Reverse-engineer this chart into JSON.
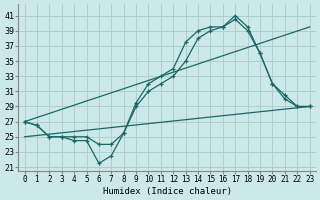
{
  "title": "",
  "xlabel": "Humidex (Indice chaleur)",
  "ylabel": "",
  "background_color": "#cce8e8",
  "grid_color": "#b0cece",
  "line_color": "#1a6868",
  "x_ticks": [
    0,
    1,
    2,
    3,
    4,
    5,
    6,
    7,
    8,
    9,
    10,
    11,
    12,
    13,
    14,
    15,
    16,
    17,
    18,
    19,
    20,
    21,
    22,
    23
  ],
  "y_ticks": [
    21,
    23,
    25,
    27,
    29,
    31,
    33,
    35,
    37,
    39,
    41
  ],
  "xlim": [
    -0.5,
    23.5
  ],
  "ylim": [
    20.5,
    42.5
  ],
  "series": [
    {
      "x": [
        0,
        1,
        2,
        3,
        4,
        5,
        6,
        7,
        8,
        9,
        10,
        11,
        12,
        13,
        14,
        15,
        16,
        17,
        18,
        19,
        20,
        21,
        22,
        23
      ],
      "y": [
        27,
        26.5,
        25,
        25,
        24.5,
        24.5,
        21.5,
        22.5,
        25.5,
        29.5,
        32,
        33,
        34,
        37.5,
        39,
        39.5,
        39.5,
        41,
        39.5,
        36,
        32,
        30.5,
        29,
        29
      ],
      "marker": true
    },
    {
      "x": [
        0,
        1,
        2,
        3,
        4,
        5,
        6,
        7,
        8,
        9,
        10,
        11,
        12,
        13,
        14,
        15,
        16,
        17,
        18,
        19,
        20,
        21,
        22,
        23
      ],
      "y": [
        27,
        26.5,
        25,
        25,
        25,
        25,
        24,
        24,
        25.5,
        29,
        31,
        32,
        33,
        35,
        38,
        39,
        39.5,
        40.5,
        39,
        36,
        32,
        30,
        29,
        29
      ],
      "marker": true
    },
    {
      "x": [
        0,
        23
      ],
      "y": [
        27,
        39.5
      ],
      "marker": false
    },
    {
      "x": [
        0,
        23
      ],
      "y": [
        25,
        29
      ],
      "marker": false
    }
  ]
}
